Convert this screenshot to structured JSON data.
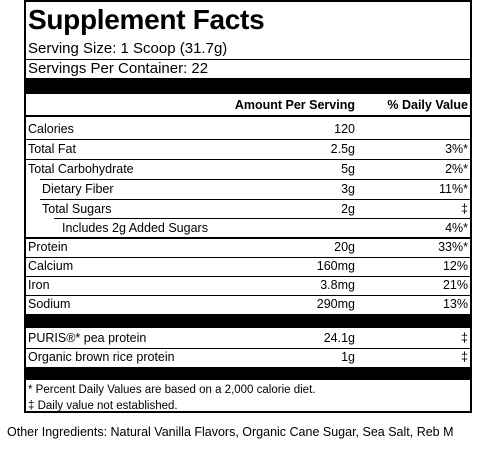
{
  "title": "Supplement Facts",
  "serving_size": "Serving Size: 1 Scoop (31.7g)",
  "servings_per_container": "Servings Per Container: 22",
  "columns": {
    "amount": "Amount Per Serving",
    "daily_value": "% Daily Value"
  },
  "nutrients": [
    {
      "name": "Calories",
      "amount": "120",
      "dv": ""
    },
    {
      "name": "Total Fat",
      "amount": "2.5g",
      "dv": "3%*"
    },
    {
      "name": "Total Carbohydrate",
      "amount": "5g",
      "dv": "2%*"
    },
    {
      "name": "Dietary Fiber",
      "amount": "3g",
      "dv": "11%*"
    },
    {
      "name": "Total Sugars",
      "amount": "2g",
      "dv": "‡"
    },
    {
      "name": "Includes 2g Added Sugars",
      "amount": "",
      "dv": "4%*"
    },
    {
      "name": "Protein",
      "amount": "20g",
      "dv": "33%*"
    },
    {
      "name": "Calcium",
      "amount": "160mg",
      "dv": "12%"
    },
    {
      "name": "Iron",
      "amount": "3.8mg",
      "dv": "21%"
    },
    {
      "name": "Sodium",
      "amount": "290mg",
      "dv": "13%"
    }
  ],
  "proteins": [
    {
      "name": "PURIS®* pea protein",
      "amount": "24.1g",
      "dv": "‡"
    },
    {
      "name": "Organic brown rice protein",
      "amount": "1g",
      "dv": "‡"
    }
  ],
  "footnotes": [
    "* Percent Daily Values are based on a 2,000 calorie diet.",
    "‡ Daily value not established."
  ],
  "other_ingredients": "Other Ingredients: Natural Vanilla Flavors, Organic Cane Sugar, Sea Salt, Reb M"
}
